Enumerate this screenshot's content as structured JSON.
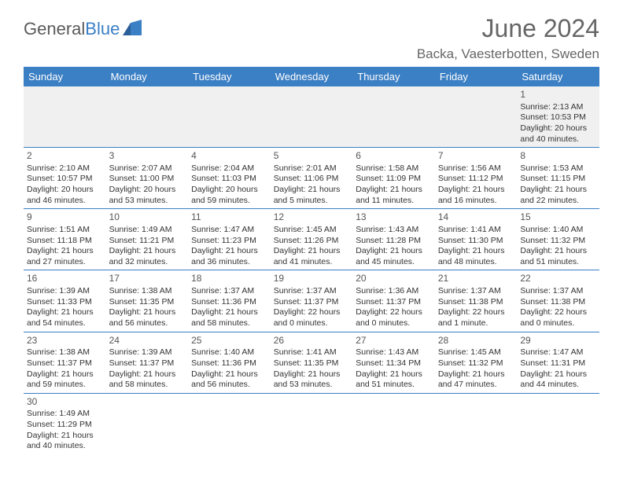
{
  "brand": {
    "prefix": "General",
    "suffix": "Blue"
  },
  "title": "June 2024",
  "location": "Backa, Vaesterbotten, Sweden",
  "dayHeaders": [
    "Sunday",
    "Monday",
    "Tuesday",
    "Wednesday",
    "Thursday",
    "Friday",
    "Saturday"
  ],
  "colors": {
    "headerBg": "#3b7fc4",
    "headerText": "#ffffff",
    "rowBorder": "#3b7fc4",
    "firstRowBg": "#f0f0f0",
    "titleColor": "#666666",
    "textColor": "#333333"
  },
  "weeks": [
    [
      null,
      null,
      null,
      null,
      null,
      null,
      {
        "d": "1",
        "sr": "Sunrise: 2:13 AM",
        "ss": "Sunset: 10:53 PM",
        "dl1": "Daylight: 20 hours",
        "dl2": "and 40 minutes."
      }
    ],
    [
      {
        "d": "2",
        "sr": "Sunrise: 2:10 AM",
        "ss": "Sunset: 10:57 PM",
        "dl1": "Daylight: 20 hours",
        "dl2": "and 46 minutes."
      },
      {
        "d": "3",
        "sr": "Sunrise: 2:07 AM",
        "ss": "Sunset: 11:00 PM",
        "dl1": "Daylight: 20 hours",
        "dl2": "and 53 minutes."
      },
      {
        "d": "4",
        "sr": "Sunrise: 2:04 AM",
        "ss": "Sunset: 11:03 PM",
        "dl1": "Daylight: 20 hours",
        "dl2": "and 59 minutes."
      },
      {
        "d": "5",
        "sr": "Sunrise: 2:01 AM",
        "ss": "Sunset: 11:06 PM",
        "dl1": "Daylight: 21 hours",
        "dl2": "and 5 minutes."
      },
      {
        "d": "6",
        "sr": "Sunrise: 1:58 AM",
        "ss": "Sunset: 11:09 PM",
        "dl1": "Daylight: 21 hours",
        "dl2": "and 11 minutes."
      },
      {
        "d": "7",
        "sr": "Sunrise: 1:56 AM",
        "ss": "Sunset: 11:12 PM",
        "dl1": "Daylight: 21 hours",
        "dl2": "and 16 minutes."
      },
      {
        "d": "8",
        "sr": "Sunrise: 1:53 AM",
        "ss": "Sunset: 11:15 PM",
        "dl1": "Daylight: 21 hours",
        "dl2": "and 22 minutes."
      }
    ],
    [
      {
        "d": "9",
        "sr": "Sunrise: 1:51 AM",
        "ss": "Sunset: 11:18 PM",
        "dl1": "Daylight: 21 hours",
        "dl2": "and 27 minutes."
      },
      {
        "d": "10",
        "sr": "Sunrise: 1:49 AM",
        "ss": "Sunset: 11:21 PM",
        "dl1": "Daylight: 21 hours",
        "dl2": "and 32 minutes."
      },
      {
        "d": "11",
        "sr": "Sunrise: 1:47 AM",
        "ss": "Sunset: 11:23 PM",
        "dl1": "Daylight: 21 hours",
        "dl2": "and 36 minutes."
      },
      {
        "d": "12",
        "sr": "Sunrise: 1:45 AM",
        "ss": "Sunset: 11:26 PM",
        "dl1": "Daylight: 21 hours",
        "dl2": "and 41 minutes."
      },
      {
        "d": "13",
        "sr": "Sunrise: 1:43 AM",
        "ss": "Sunset: 11:28 PM",
        "dl1": "Daylight: 21 hours",
        "dl2": "and 45 minutes."
      },
      {
        "d": "14",
        "sr": "Sunrise: 1:41 AM",
        "ss": "Sunset: 11:30 PM",
        "dl1": "Daylight: 21 hours",
        "dl2": "and 48 minutes."
      },
      {
        "d": "15",
        "sr": "Sunrise: 1:40 AM",
        "ss": "Sunset: 11:32 PM",
        "dl1": "Daylight: 21 hours",
        "dl2": "and 51 minutes."
      }
    ],
    [
      {
        "d": "16",
        "sr": "Sunrise: 1:39 AM",
        "ss": "Sunset: 11:33 PM",
        "dl1": "Daylight: 21 hours",
        "dl2": "and 54 minutes."
      },
      {
        "d": "17",
        "sr": "Sunrise: 1:38 AM",
        "ss": "Sunset: 11:35 PM",
        "dl1": "Daylight: 21 hours",
        "dl2": "and 56 minutes."
      },
      {
        "d": "18",
        "sr": "Sunrise: 1:37 AM",
        "ss": "Sunset: 11:36 PM",
        "dl1": "Daylight: 21 hours",
        "dl2": "and 58 minutes."
      },
      {
        "d": "19",
        "sr": "Sunrise: 1:37 AM",
        "ss": "Sunset: 11:37 PM",
        "dl1": "Daylight: 22 hours",
        "dl2": "and 0 minutes."
      },
      {
        "d": "20",
        "sr": "Sunrise: 1:36 AM",
        "ss": "Sunset: 11:37 PM",
        "dl1": "Daylight: 22 hours",
        "dl2": "and 0 minutes."
      },
      {
        "d": "21",
        "sr": "Sunrise: 1:37 AM",
        "ss": "Sunset: 11:38 PM",
        "dl1": "Daylight: 22 hours",
        "dl2": "and 1 minute."
      },
      {
        "d": "22",
        "sr": "Sunrise: 1:37 AM",
        "ss": "Sunset: 11:38 PM",
        "dl1": "Daylight: 22 hours",
        "dl2": "and 0 minutes."
      }
    ],
    [
      {
        "d": "23",
        "sr": "Sunrise: 1:38 AM",
        "ss": "Sunset: 11:37 PM",
        "dl1": "Daylight: 21 hours",
        "dl2": "and 59 minutes."
      },
      {
        "d": "24",
        "sr": "Sunrise: 1:39 AM",
        "ss": "Sunset: 11:37 PM",
        "dl1": "Daylight: 21 hours",
        "dl2": "and 58 minutes."
      },
      {
        "d": "25",
        "sr": "Sunrise: 1:40 AM",
        "ss": "Sunset: 11:36 PM",
        "dl1": "Daylight: 21 hours",
        "dl2": "and 56 minutes."
      },
      {
        "d": "26",
        "sr": "Sunrise: 1:41 AM",
        "ss": "Sunset: 11:35 PM",
        "dl1": "Daylight: 21 hours",
        "dl2": "and 53 minutes."
      },
      {
        "d": "27",
        "sr": "Sunrise: 1:43 AM",
        "ss": "Sunset: 11:34 PM",
        "dl1": "Daylight: 21 hours",
        "dl2": "and 51 minutes."
      },
      {
        "d": "28",
        "sr": "Sunrise: 1:45 AM",
        "ss": "Sunset: 11:32 PM",
        "dl1": "Daylight: 21 hours",
        "dl2": "and 47 minutes."
      },
      {
        "d": "29",
        "sr": "Sunrise: 1:47 AM",
        "ss": "Sunset: 11:31 PM",
        "dl1": "Daylight: 21 hours",
        "dl2": "and 44 minutes."
      }
    ],
    [
      {
        "d": "30",
        "sr": "Sunrise: 1:49 AM",
        "ss": "Sunset: 11:29 PM",
        "dl1": "Daylight: 21 hours",
        "dl2": "and 40 minutes."
      },
      null,
      null,
      null,
      null,
      null,
      null
    ]
  ]
}
